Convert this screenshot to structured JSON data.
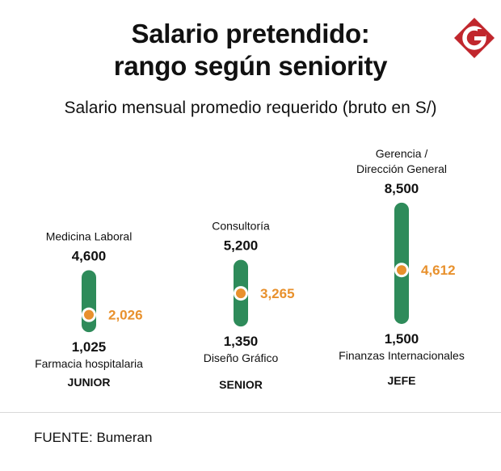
{
  "header": {
    "title_line1": "Salario pretendido:",
    "title_line2": "rango según seniority",
    "subtitle": "Salario mensual promedio requerido (bruto en S/)"
  },
  "logo": {
    "letter": "G",
    "color": "#c1272d",
    "icon": "g-logo-icon"
  },
  "source": "FUENTE: Bumeran",
  "colors": {
    "bar": "#2e8b5a",
    "average": "#e8912d",
    "text": "#111111"
  },
  "chart_data": {
    "type": "range",
    "title": "Salario pretendido: rango según seniority",
    "subtitle": "Salario mensual promedio requerido (bruto en S/)",
    "series": [
      {
        "level": "JUNIOR",
        "min": 1025,
        "max": 4600,
        "average": 2026,
        "min_label": "1,025",
        "max_label": "4,600",
        "avg_label": "2,026",
        "min_area": [
          "Farmacia hospitalaria"
        ],
        "max_area": [
          "Medicina Laboral"
        ]
      },
      {
        "level": "SENIOR",
        "min": 1350,
        "max": 5200,
        "average": 3265,
        "min_label": "1,350",
        "max_label": "5,200",
        "avg_label": "3,265",
        "min_area": [
          "Diseño Gráfico"
        ],
        "max_area": [
          "Consultoría"
        ]
      },
      {
        "level": "JEFE",
        "min": 1500,
        "max": 8500,
        "average": 4612,
        "min_label": "1,500",
        "max_label": "8,500",
        "avg_label": "4,612",
        "min_area": [
          "Finanzas Internacionales"
        ],
        "max_area": [
          "Gerencia /",
          "Dirección General"
        ]
      }
    ]
  }
}
